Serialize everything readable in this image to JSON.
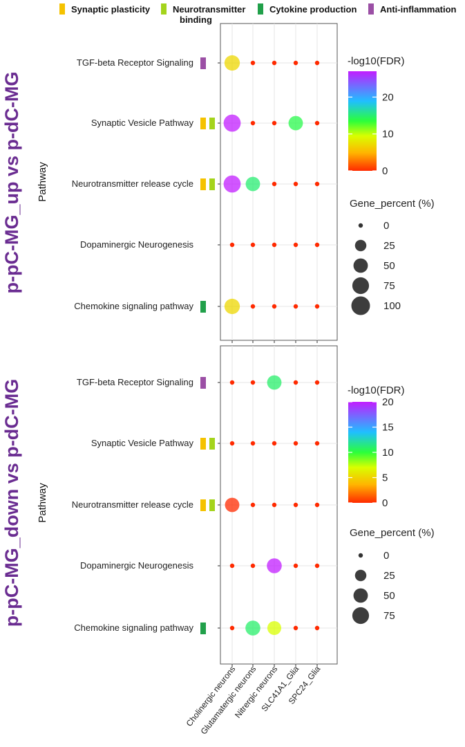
{
  "colors": {
    "synaptic": "#f5c200",
    "neurotransmitter": "#a4d41c",
    "cytokine": "#21a04a",
    "anti_inflammation": "#9b4fa5",
    "title": "#6a2c91",
    "grid": "#e4e4e4",
    "panel_border": "#555555"
  },
  "categories_legend": [
    {
      "key": "synaptic",
      "label": "Synaptic plasticity"
    },
    {
      "key": "neurotransmitter",
      "label": "Neurotransmitter binding"
    },
    {
      "key": "cytokine",
      "label": "Cytokine production"
    },
    {
      "key": "anti_inflammation",
      "label": "Anti-inflammation"
    }
  ],
  "chart_data": [
    {
      "type": "scatter",
      "subtype": "dot-plot",
      "title": "p-pC-MG_up vs p-dC-MG",
      "ylabel": "Pathway",
      "xlabel": "",
      "x_categories": [
        "Cholinergic neurons",
        "Glutamatergic neurons",
        "Nitrergic neurons",
        "SLC41A1_Glia",
        "SPC24_Glia"
      ],
      "y_categories": [
        "TGF-beta Receptor Signaling",
        "Synaptic Vesicle Pathway",
        "Neurotransmitter release cycle",
        "Dopaminergic Neurogenesis",
        "Chemokine signaling pathway"
      ],
      "pathway_tags": [
        [
          "anti_inflammation"
        ],
        [
          "synaptic",
          "neurotransmitter"
        ],
        [
          "synaptic",
          "neurotransmitter"
        ],
        [],
        [
          "cytokine"
        ]
      ],
      "gene_percent": [
        [
          60,
          0,
          0,
          0,
          0
        ],
        [
          80,
          0,
          0,
          50,
          0
        ],
        [
          80,
          50,
          0,
          0,
          0
        ],
        [
          0,
          0,
          0,
          0,
          0
        ],
        [
          60,
          0,
          0,
          0,
          0
        ]
      ],
      "neg_log10_fdr": [
        [
          7,
          0,
          0,
          0,
          0
        ],
        [
          27,
          0,
          0,
          14,
          0
        ],
        [
          27,
          15,
          0,
          0,
          0
        ],
        [
          0,
          0,
          0,
          0,
          0
        ],
        [
          7,
          0,
          0,
          0,
          0
        ]
      ],
      "color_legend": {
        "title": "-log10(FDR)",
        "range": [
          0,
          27
        ],
        "ticks": [
          0,
          10,
          20
        ]
      },
      "size_legend": {
        "title": "Gene_percent (%)",
        "values": [
          0,
          25,
          50,
          75,
          100
        ]
      }
    },
    {
      "type": "scatter",
      "subtype": "dot-plot",
      "title": "p-pC-MG_down vs p-dC-MG",
      "ylabel": "Pathway",
      "xlabel": "",
      "x_categories": [
        "Cholinergic neurons",
        "Glutamatergic neurons",
        "Nitrergic neurons",
        "SLC41A1_Glia",
        "SPC24_Glia"
      ],
      "y_categories": [
        "TGF-beta Receptor Signaling",
        "Synaptic Vesicle Pathway",
        "Neurotransmitter release cycle",
        "Dopaminergic Neurogenesis",
        "Chemokine signaling pathway"
      ],
      "pathway_tags": [
        [
          "anti_inflammation"
        ],
        [
          "synaptic",
          "neurotransmitter"
        ],
        [
          "synaptic",
          "neurotransmitter"
        ],
        [],
        [
          "cytokine"
        ]
      ],
      "gene_percent": [
        [
          0,
          0,
          50,
          0,
          0
        ],
        [
          0,
          0,
          0,
          0,
          0
        ],
        [
          50,
          0,
          0,
          0,
          0
        ],
        [
          0,
          0,
          55,
          0,
          0
        ],
        [
          0,
          55,
          45,
          0,
          0
        ]
      ],
      "neg_log10_fdr": [
        [
          0,
          0,
          11,
          0,
          0
        ],
        [
          0,
          0,
          0,
          0,
          0
        ],
        [
          0,
          0,
          0,
          0,
          0
        ],
        [
          0,
          0,
          20,
          0,
          0
        ],
        [
          0,
          11,
          7,
          0,
          0
        ]
      ],
      "color_legend": {
        "title": "-log10(FDR)",
        "range": [
          0,
          20
        ],
        "ticks": [
          0,
          5,
          10,
          15,
          20
        ]
      },
      "size_legend": {
        "title": "Gene_percent (%)",
        "values": [
          0,
          25,
          50,
          75
        ]
      }
    }
  ]
}
